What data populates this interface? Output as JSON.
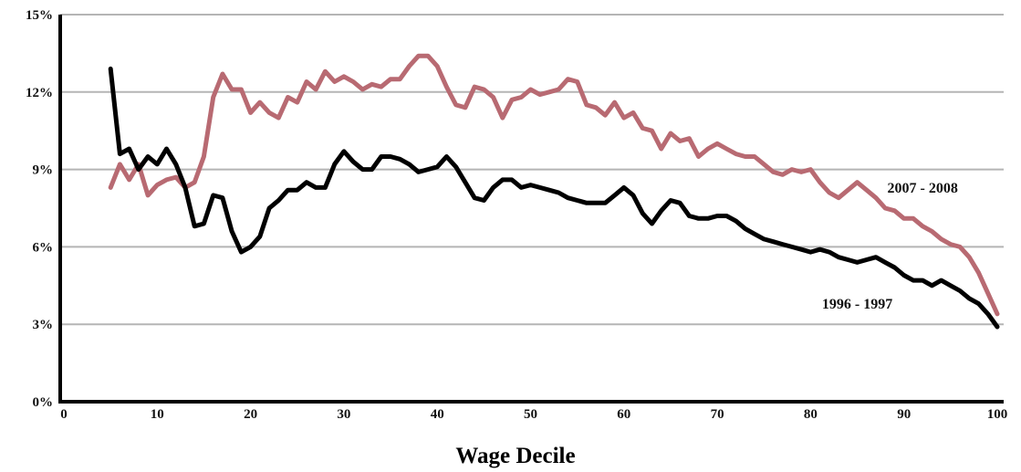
{
  "chart_data": {
    "type": "line",
    "title": "",
    "xlabel": "Wage Decile",
    "ylabel": "",
    "xlim": [
      0,
      100
    ],
    "ylim": [
      0,
      15
    ],
    "x_ticks": [
      0,
      10,
      20,
      30,
      40,
      50,
      60,
      70,
      80,
      90,
      100
    ],
    "x_tick_labels": [
      "0",
      "10",
      "20",
      "30",
      "40",
      "50",
      "60",
      "70",
      "80",
      "90",
      "100"
    ],
    "y_ticks": [
      0,
      3,
      6,
      9,
      12,
      15
    ],
    "y_tick_labels": [
      "0%",
      "3%",
      "6%",
      "9%",
      "12%",
      "15%"
    ],
    "grid": "horizontal",
    "series": [
      {
        "name": "2007 - 2008",
        "color": "#b86a72",
        "x": [
          5,
          6,
          7,
          8,
          9,
          10,
          11,
          12,
          13,
          14,
          15,
          16,
          17,
          18,
          19,
          20,
          21,
          22,
          23,
          24,
          25,
          26,
          27,
          28,
          29,
          30,
          31,
          32,
          33,
          34,
          35,
          36,
          37,
          38,
          39,
          40,
          41,
          42,
          43,
          44,
          45,
          46,
          47,
          48,
          49,
          50,
          51,
          52,
          53,
          54,
          55,
          56,
          57,
          58,
          59,
          60,
          61,
          62,
          63,
          64,
          65,
          66,
          67,
          68,
          69,
          70,
          71,
          72,
          73,
          74,
          75,
          76,
          77,
          78,
          79,
          80,
          81,
          82,
          83,
          84,
          85,
          86,
          87,
          88,
          89,
          90,
          91,
          92,
          93,
          94,
          95,
          96,
          97,
          98,
          99,
          100
        ],
        "y": [
          8.3,
          9.2,
          8.6,
          9.2,
          8.0,
          8.4,
          8.6,
          8.7,
          8.3,
          8.5,
          9.5,
          11.8,
          12.7,
          12.1,
          12.1,
          11.2,
          11.6,
          11.2,
          11.0,
          11.8,
          11.6,
          12.4,
          12.1,
          12.8,
          12.4,
          12.6,
          12.4,
          12.1,
          12.3,
          12.2,
          12.5,
          12.5,
          13.0,
          13.4,
          13.4,
          13.0,
          12.2,
          11.5,
          11.4,
          12.2,
          12.1,
          11.8,
          11.0,
          11.7,
          11.8,
          12.1,
          11.9,
          12.0,
          12.1,
          12.5,
          12.4,
          11.5,
          11.4,
          11.1,
          11.6,
          11.0,
          11.2,
          10.6,
          10.5,
          9.8,
          10.4,
          10.1,
          10.2,
          9.5,
          9.8,
          10.0,
          9.8,
          9.6,
          9.5,
          9.5,
          9.2,
          8.9,
          8.8,
          9.0,
          8.9,
          9.0,
          8.5,
          8.1,
          7.9,
          8.2,
          8.5,
          8.2,
          7.9,
          7.5,
          7.4,
          7.1,
          7.1,
          6.8,
          6.6,
          6.3,
          6.1,
          6.0,
          5.6,
          5.0,
          4.2,
          3.4
        ]
      },
      {
        "name": "1996 - 1997",
        "color": "#000000",
        "x": [
          5,
          6,
          7,
          8,
          9,
          10,
          11,
          12,
          13,
          14,
          15,
          16,
          17,
          18,
          19,
          20,
          21,
          22,
          23,
          24,
          25,
          26,
          27,
          28,
          29,
          30,
          31,
          32,
          33,
          34,
          35,
          36,
          37,
          38,
          39,
          40,
          41,
          42,
          43,
          44,
          45,
          46,
          47,
          48,
          49,
          50,
          51,
          52,
          53,
          54,
          55,
          56,
          57,
          58,
          59,
          60,
          61,
          62,
          63,
          64,
          65,
          66,
          67,
          68,
          69,
          70,
          71,
          72,
          73,
          74,
          75,
          76,
          77,
          78,
          79,
          80,
          81,
          82,
          83,
          84,
          85,
          86,
          87,
          88,
          89,
          90,
          91,
          92,
          93,
          94,
          95,
          96,
          97,
          98,
          99,
          100
        ],
        "y": [
          12.9,
          9.6,
          9.8,
          9.0,
          9.5,
          9.2,
          9.8,
          9.2,
          8.3,
          6.8,
          6.9,
          8.0,
          7.9,
          6.6,
          5.8,
          6.0,
          6.4,
          7.5,
          7.8,
          8.2,
          8.2,
          8.5,
          8.3,
          8.3,
          9.2,
          9.7,
          9.3,
          9.0,
          9.0,
          9.5,
          9.5,
          9.4,
          9.2,
          8.9,
          9.0,
          9.1,
          9.5,
          9.1,
          8.5,
          7.9,
          7.8,
          8.3,
          8.6,
          8.6,
          8.3,
          8.4,
          8.3,
          8.2,
          8.1,
          7.9,
          7.8,
          7.7,
          7.7,
          7.7,
          8.0,
          8.3,
          8.0,
          7.3,
          6.9,
          7.4,
          7.8,
          7.7,
          7.2,
          7.1,
          7.1,
          7.2,
          7.2,
          7.0,
          6.7,
          6.5,
          6.3,
          6.2,
          6.1,
          6.0,
          5.9,
          5.8,
          5.9,
          5.8,
          5.6,
          5.5,
          5.4,
          5.5,
          5.6,
          5.4,
          5.2,
          4.9,
          4.7,
          4.7,
          4.5,
          4.7,
          4.5,
          4.3,
          4.0,
          3.8,
          3.4,
          2.9
        ]
      }
    ],
    "annotations": [
      {
        "text": "2007 - 2008",
        "series": "2007 - 2008",
        "x": 92,
        "y": 8.1
      },
      {
        "text": "1996 - 1997",
        "series": "1996 - 1997",
        "x": 85,
        "y": 3.6
      }
    ]
  }
}
